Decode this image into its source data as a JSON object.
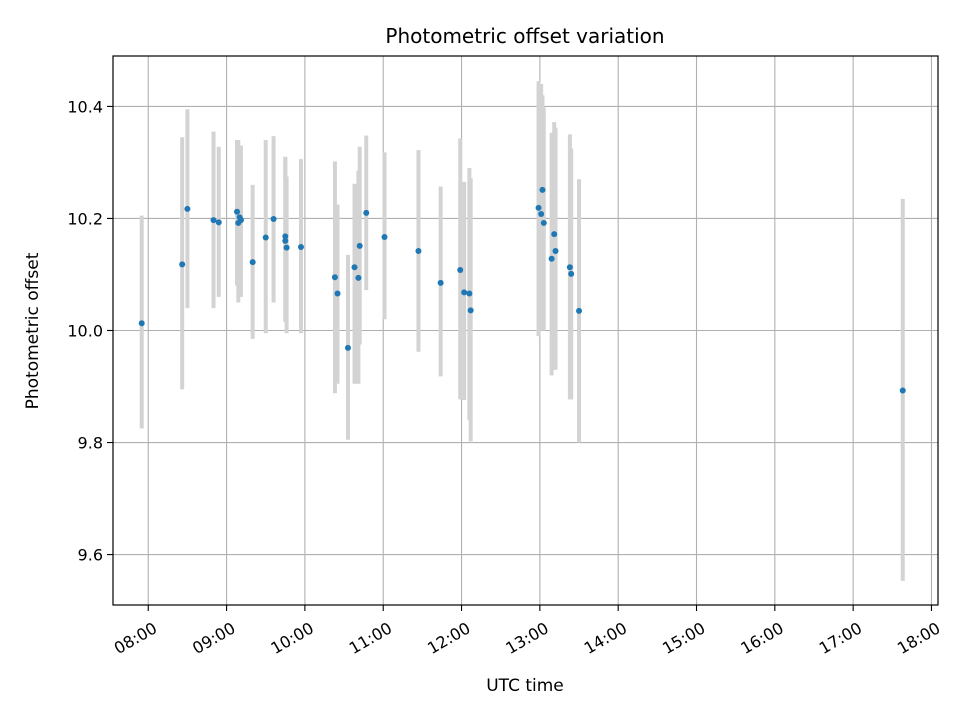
{
  "chart_data": {
    "type": "scatter",
    "title": "Photometric offset variation",
    "xlabel": "UTC time",
    "ylabel": "Photometric offset",
    "xlim": [
      "07:33",
      "18:05"
    ],
    "ylim": [
      9.51,
      10.49
    ],
    "x_ticks": [
      "08:00",
      "09:00",
      "10:00",
      "11:00",
      "12:00",
      "13:00",
      "14:00",
      "15:00",
      "16:00",
      "17:00",
      "18:00"
    ],
    "y_ticks": [
      9.6,
      9.8,
      10.0,
      10.2,
      10.4
    ],
    "y_tick_labels": [
      "9.6",
      "9.8",
      "10.0",
      "10.2",
      "10.4"
    ],
    "grid": true,
    "error_bar_color": "#d3d3d3",
    "point_color": "#1f77b4",
    "series": [
      {
        "x": [
          "07:55",
          "08:26",
          "08:30",
          "08:50",
          "08:54",
          "09:08",
          "09:09",
          "09:10",
          "09:11",
          "09:20",
          "09:30",
          "09:36",
          "09:45",
          "09:45",
          "09:46",
          "09:57",
          "10:23",
          "10:25",
          "10:33",
          "10:38",
          "10:41",
          "10:42",
          "10:47",
          "11:01",
          "11:27",
          "11:44",
          "11:59",
          "12:02",
          "12:06",
          "12:07",
          "12:59",
          "13:01",
          "13:02",
          "13:03",
          "13:09",
          "13:11",
          "13:12",
          "13:23",
          "13:24",
          "13:30",
          "17:38"
        ],
        "y": [
          10.013,
          10.118,
          10.217,
          10.197,
          10.193,
          10.212,
          10.192,
          10.202,
          10.197,
          10.122,
          10.166,
          10.199,
          10.168,
          10.16,
          10.148,
          10.149,
          10.095,
          10.066,
          9.969,
          10.113,
          10.094,
          10.151,
          10.21,
          10.167,
          10.142,
          10.085,
          10.108,
          10.068,
          10.066,
          10.036,
          10.219,
          10.208,
          10.251,
          10.192,
          10.128,
          10.172,
          10.142,
          10.113,
          10.101,
          10.035,
          9.893
        ],
        "err_low": [
          9.825,
          9.895,
          10.04,
          10.04,
          10.06,
          10.08,
          10.05,
          10.06,
          10.06,
          9.985,
          9.995,
          10.05,
          10.015,
          10.02,
          9.995,
          9.995,
          9.888,
          9.905,
          9.805,
          9.905,
          9.905,
          9.975,
          10.072,
          10.02,
          9.962,
          9.918,
          9.877,
          9.876,
          9.84,
          9.802,
          9.99,
          10.0,
          10.0,
          10.0,
          9.92,
          9.93,
          9.93,
          9.877,
          9.877,
          9.8,
          9.553
        ],
        "err_high": [
          10.205,
          10.345,
          10.395,
          10.355,
          10.328,
          10.34,
          10.34,
          10.33,
          10.33,
          10.26,
          10.34,
          10.347,
          10.31,
          10.31,
          10.275,
          10.306,
          10.302,
          10.225,
          10.135,
          10.262,
          10.285,
          10.328,
          10.348,
          10.318,
          10.322,
          10.257,
          10.343,
          10.265,
          10.29,
          10.272,
          10.445,
          10.44,
          10.42,
          10.398,
          10.353,
          10.372,
          10.362,
          10.35,
          10.325,
          10.27,
          10.235
        ]
      }
    ]
  }
}
